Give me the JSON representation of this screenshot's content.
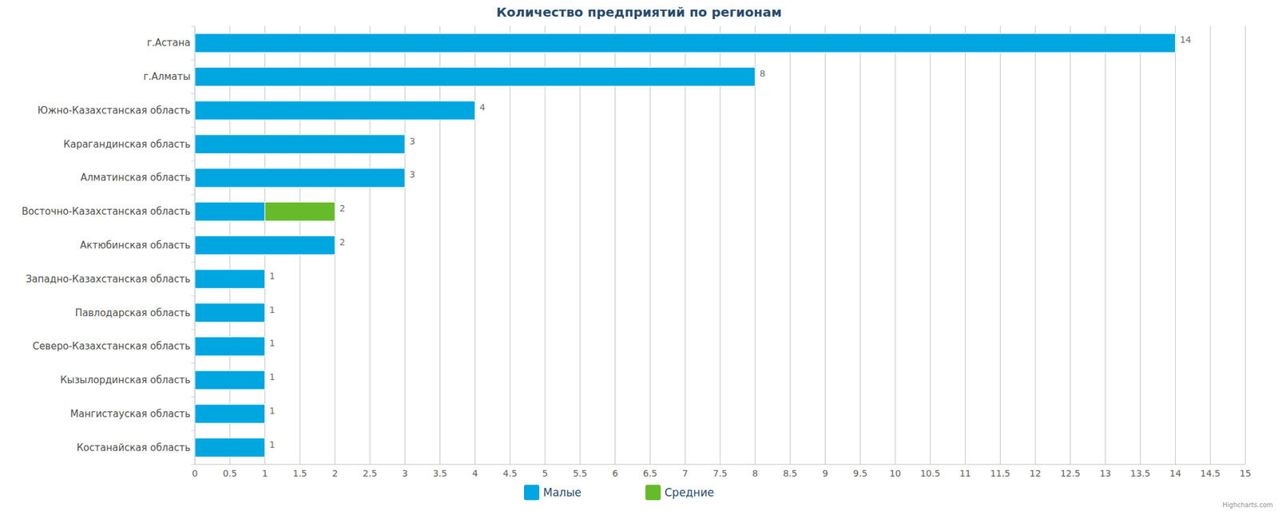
{
  "chart_data": {
    "type": "bar",
    "title": "Количество предприятий по регионам",
    "orientation": "horizontal",
    "stacked": true,
    "grid": true,
    "legend": "bottom",
    "categories": [
      "г.Астана",
      "г.Алматы",
      "Южно-Казахстанская область",
      "Карагандинская область",
      "Алматинская область",
      "Восточно-Казахстанская область",
      "Актюбинская область",
      "Западно-Казахстанская область",
      "Павлодарская область",
      "Северо-Казахстанская область",
      "Кызылординская область",
      "Мангистауская область",
      "Костанайская область"
    ],
    "series": [
      {
        "name": "Малые",
        "color": "#00a6e0",
        "values": [
          14,
          8,
          4,
          3,
          3,
          1,
          2,
          1,
          1,
          1,
          1,
          1,
          1
        ]
      },
      {
        "name": "Средние",
        "color": "#66bb2b",
        "values": [
          null,
          null,
          null,
          null,
          null,
          1,
          null,
          null,
          null,
          null,
          null,
          null,
          null
        ]
      }
    ],
    "totals": [
      14,
      8,
      4,
      3,
      3,
      2,
      2,
      1,
      1,
      1,
      1,
      1,
      1
    ],
    "xlim": [
      0,
      15
    ],
    "xticks": [
      0,
      0.5,
      1,
      1.5,
      2,
      2.5,
      3,
      3.5,
      4,
      4.5,
      5,
      5.5,
      6,
      6.5,
      7,
      7.5,
      8,
      8.5,
      9,
      9.5,
      10,
      10.5,
      11,
      11.5,
      12,
      12.5,
      13,
      13.5,
      14,
      14.5,
      15
    ],
    "credits": "Highcharts.com"
  }
}
